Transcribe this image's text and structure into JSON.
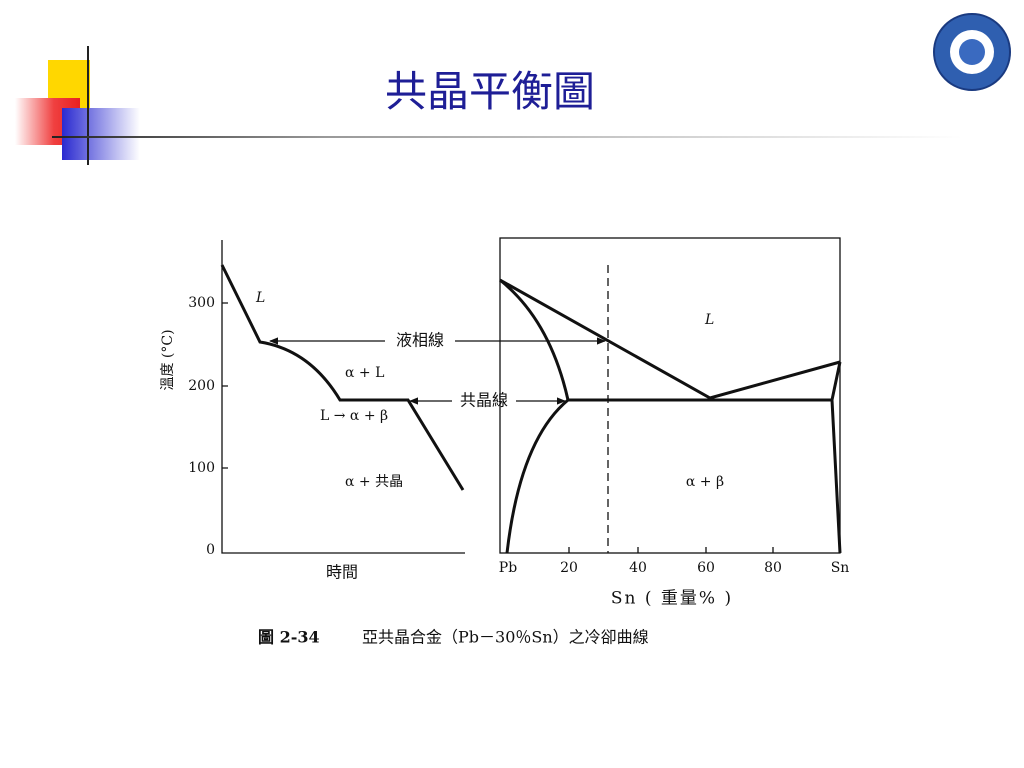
{
  "slide": {
    "title": "共晶平衡圖"
  },
  "figure": {
    "cooling_curve": {
      "y_axis_label": "溫度 (°C)",
      "y_ticks": [
        300,
        200,
        100,
        0
      ],
      "x_axis_label": "時間",
      "labels": [
        "L",
        "α + L",
        "L → α + β",
        "α + 共晶"
      ]
    },
    "phase_diagram": {
      "x_ticks": [
        "Pb",
        20,
        40,
        60,
        80,
        "Sn"
      ],
      "x_axis_label": "Sn ( 重量% )",
      "labels": [
        "L",
        "α + β"
      ]
    },
    "annotations": [
      "液相線",
      "共晶線"
    ],
    "caption": {
      "number": "圖 2-34",
      "text": "亞共晶合金（Pb－30％Sn）之冷卻曲線"
    }
  }
}
